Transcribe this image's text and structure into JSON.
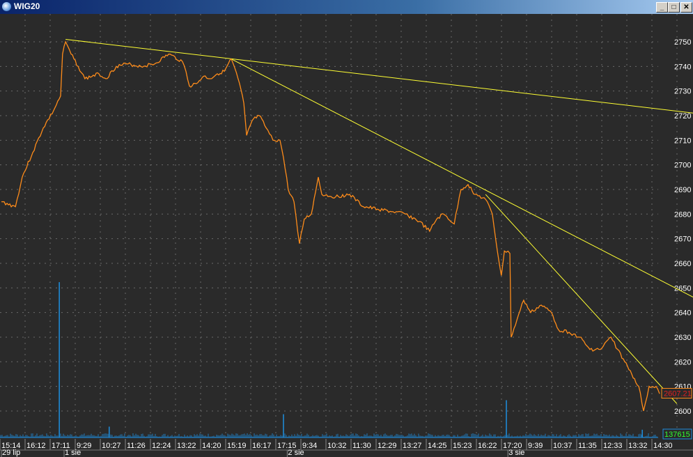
{
  "window": {
    "title": "WIG20",
    "buttons": {
      "minimize": "_",
      "maximize": "□",
      "close": "✕"
    }
  },
  "colors": {
    "background": "#2a2a2a",
    "price": "#ff8c1a",
    "trendline": "#ffff33",
    "volume": "#1e8fe0",
    "grid": "#6a6a6a",
    "axis_text": "#ffffff",
    "last_price_text": "#e02020",
    "last_volume_text": "#30ff30"
  },
  "chart_data": {
    "type": "line",
    "title": "WIG20",
    "y_ticks": [
      2600,
      2610,
      2620,
      2630,
      2640,
      2650,
      2660,
      2670,
      2680,
      2690,
      2700,
      2710,
      2720,
      2730,
      2740,
      2750
    ],
    "ylim": [
      2589,
      2765
    ],
    "grid": true,
    "x_tick_labels": [
      "15:14",
      "16:12",
      "17:11",
      "9:29",
      "10:27",
      "11:26",
      "12:24",
      "13:22",
      "14:20",
      "15:19",
      "16:17",
      "17:15",
      "9:34",
      "10:32",
      "11:30",
      "12:29",
      "13:27",
      "14:25",
      "15:23",
      "16:22",
      "17:20",
      "9:39",
      "10:37",
      "11:35",
      "12:33",
      "13:32",
      "14:30"
    ],
    "date_labels": [
      {
        "label": "29 lip",
        "at_tick": 0
      },
      {
        "label": "1 sie",
        "at_tick": 2.5
      },
      {
        "label": "2 sie",
        "at_tick": 11.4
      },
      {
        "label": "3 sie",
        "at_tick": 20.2
      }
    ],
    "price": [
      [
        0,
        2685
      ],
      [
        0.56,
        2683
      ],
      [
        0.83,
        2695
      ],
      [
        1.25,
        2705
      ],
      [
        1.67,
        2715
      ],
      [
        2.08,
        2722
      ],
      [
        2.36,
        2728
      ],
      [
        2.44,
        2745
      ],
      [
        2.56,
        2750
      ],
      [
        2.78,
        2745
      ],
      [
        3.06,
        2740
      ],
      [
        3.33,
        2735
      ],
      [
        3.89,
        2737
      ],
      [
        4.17,
        2735
      ],
      [
        4.58,
        2740
      ],
      [
        5,
        2741
      ],
      [
        5.56,
        2740
      ],
      [
        6.11,
        2741
      ],
      [
        6.67,
        2745
      ],
      [
        7.22,
        2742
      ],
      [
        7.36,
        2738
      ],
      [
        7.5,
        2732
      ],
      [
        7.78,
        2733
      ],
      [
        8.06,
        2736
      ],
      [
        8.33,
        2735
      ],
      [
        8.61,
        2737
      ],
      [
        8.89,
        2738
      ],
      [
        9.17,
        2743
      ],
      [
        9.44,
        2735
      ],
      [
        9.67,
        2725
      ],
      [
        9.78,
        2712
      ],
      [
        10,
        2718
      ],
      [
        10.28,
        2720
      ],
      [
        10.56,
        2715
      ],
      [
        10.83,
        2710
      ],
      [
        11.11,
        2710
      ],
      [
        11.25,
        2703
      ],
      [
        11.44,
        2690
      ],
      [
        11.67,
        2685
      ],
      [
        11.89,
        2668
      ],
      [
        12.08,
        2678
      ],
      [
        12.36,
        2680
      ],
      [
        12.64,
        2695
      ],
      [
        12.78,
        2688
      ],
      [
        13.33,
        2687
      ],
      [
        13.89,
        2688
      ],
      [
        14.44,
        2683
      ],
      [
        15,
        2682
      ],
      [
        15.56,
        2681
      ],
      [
        16.11,
        2680
      ],
      [
        16.67,
        2677
      ],
      [
        17.08,
        2673
      ],
      [
        17.36,
        2678
      ],
      [
        17.64,
        2680
      ],
      [
        18.06,
        2676
      ],
      [
        18.33,
        2690
      ],
      [
        18.61,
        2692
      ],
      [
        18.89,
        2688
      ],
      [
        19.31,
        2686
      ],
      [
        19.58,
        2680
      ],
      [
        19.78,
        2665
      ],
      [
        19.94,
        2655
      ],
      [
        20.06,
        2665
      ],
      [
        20.28,
        2664
      ],
      [
        20.33,
        2630
      ],
      [
        20.56,
        2637
      ],
      [
        20.83,
        2645
      ],
      [
        21.11,
        2640
      ],
      [
        21.53,
        2643
      ],
      [
        21.94,
        2640
      ],
      [
        22.22,
        2633
      ],
      [
        22.64,
        2632
      ],
      [
        23.06,
        2630
      ],
      [
        23.47,
        2625
      ],
      [
        23.89,
        2625
      ],
      [
        24.31,
        2630
      ],
      [
        24.58,
        2625
      ],
      [
        24.86,
        2620
      ],
      [
        25.14,
        2615
      ],
      [
        25.42,
        2610
      ],
      [
        25.61,
        2600
      ],
      [
        25.83,
        2610
      ],
      [
        26.11,
        2610
      ],
      [
        26.25,
        2607
      ]
    ],
    "trendlines": [
      {
        "from": [
          2.56,
          2751
        ],
        "to": [
          27.64,
          2721
        ]
      },
      {
        "from": [
          9.17,
          2743
        ],
        "to": [
          27.64,
          2646
        ]
      },
      {
        "from": [
          19.31,
          2688
        ],
        "to": [
          26.94,
          2603
        ]
      }
    ],
    "volume_spikes": [
      [
        2.31,
        100
      ],
      [
        4.3,
        7
      ],
      [
        11.25,
        15
      ],
      [
        20.14,
        24
      ],
      [
        25.56,
        5
      ]
    ],
    "last_price": "2607.21",
    "last_volume": "137615"
  }
}
